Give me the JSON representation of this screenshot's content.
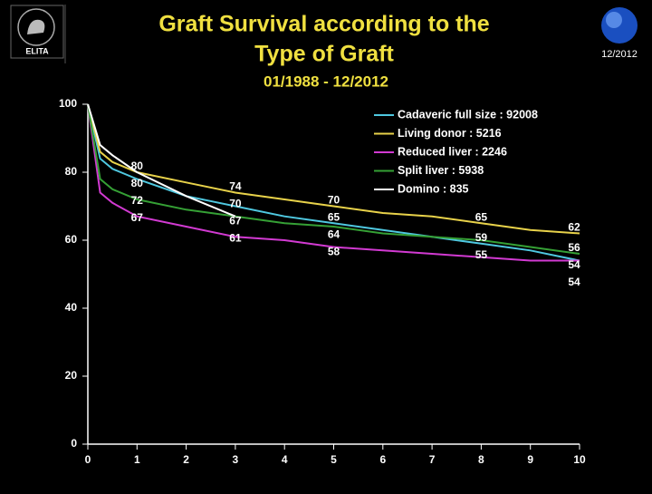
{
  "header": {
    "logo": "ELITA",
    "date": "12/2012"
  },
  "chart_data": {
    "type": "line",
    "title": "Graft Survival according to the",
    "title_line2": "Type of Graft",
    "subtitle": "01/1988 - 12/2012",
    "x": [
      0,
      0.25,
      0.5,
      1,
      2,
      3,
      4,
      5,
      6,
      7,
      8,
      9,
      10
    ],
    "series": [
      {
        "name": "Cadaveric full size : 92008",
        "color": "#4fc8e0",
        "values": [
          100,
          84,
          81,
          78,
          73,
          70,
          67,
          65,
          63,
          61,
          59,
          57,
          54
        ]
      },
      {
        "name": "Living donor : 5216",
        "color": "#e8d24a",
        "values": [
          100,
          86,
          83,
          80,
          77,
          74,
          72,
          70,
          68,
          67,
          65,
          63,
          62
        ]
      },
      {
        "name": "Reduced liver : 2246",
        "color": "#d23ad2",
        "values": [
          100,
          74,
          71,
          67,
          64,
          61,
          60,
          58,
          57,
          56,
          55,
          54,
          54
        ]
      },
      {
        "name": "Split liver : 5938",
        "color": "#35a035",
        "values": [
          100,
          78,
          75,
          72,
          69,
          67,
          65,
          64,
          62,
          61,
          60,
          58,
          56
        ]
      },
      {
        "name": "Domino : 835",
        "color": "#ffffff",
        "values": [
          100,
          88,
          85,
          80,
          73,
          67,
          null,
          null,
          null,
          null,
          null,
          null,
          null
        ]
      }
    ],
    "data_labels": [
      {
        "x": 1,
        "y": 80
      },
      {
        "x": 1,
        "y": 80
      },
      {
        "x": 1,
        "y": 72
      },
      {
        "x": 1,
        "y": 67
      },
      {
        "x": 3,
        "y": 74
      },
      {
        "x": 3,
        "y": 70
      },
      {
        "x": 3,
        "y": 67
      },
      {
        "x": 3,
        "y": 61
      },
      {
        "x": 5,
        "y": 70
      },
      {
        "x": 5,
        "y": 65
      },
      {
        "x": 5,
        "y": 64
      },
      {
        "x": 5,
        "y": 58
      },
      {
        "x": 8,
        "y": 65
      },
      {
        "x": 8,
        "y": 59
      },
      {
        "x": 8,
        "y": 55
      },
      {
        "x": 10,
        "y": 62
      },
      {
        "x": 10,
        "y": 56
      },
      {
        "x": 10,
        "y": 54
      },
      {
        "x": 10,
        "y": 54
      }
    ],
    "xlim": [
      0,
      10
    ],
    "xticks": [
      0,
      1,
      2,
      3,
      4,
      5,
      6,
      7,
      8,
      9,
      10
    ],
    "ylim": [
      0,
      100
    ],
    "yticks": [
      0,
      20,
      40,
      60,
      80,
      100
    ],
    "legend": "top-right"
  }
}
